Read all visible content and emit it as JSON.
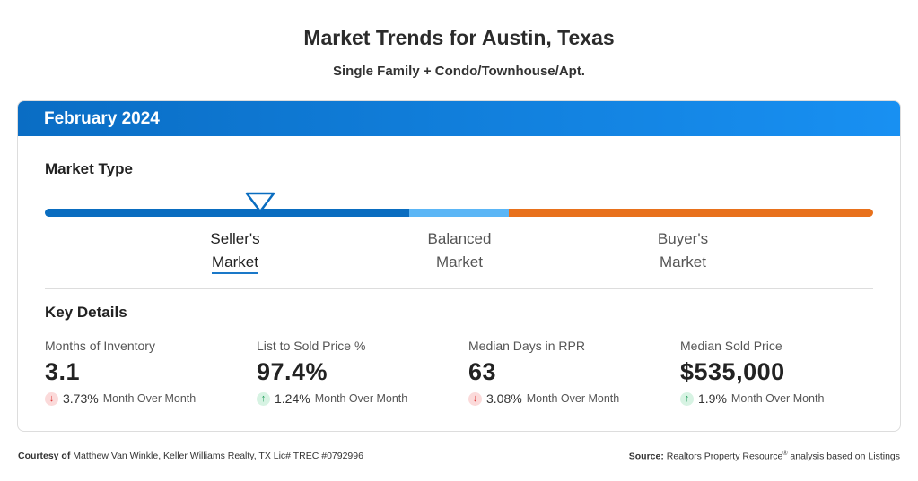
{
  "title": "Market Trends for Austin, Texas",
  "subtitle": "Single Family + Condo/Townhouse/Apt.",
  "period": "February 2024",
  "market_type": {
    "heading": "Market Type",
    "indicator_position": 0.26,
    "colors": {
      "seller": "#0a6dc0",
      "balanced": "#5bb6f6",
      "buyer": "#e8711c"
    },
    "labels": [
      {
        "line1": "Seller's",
        "line2": "Market",
        "active": true
      },
      {
        "line1": "Balanced",
        "line2": "Market"
      },
      {
        "line1": "Buyer's",
        "line2": "Market"
      }
    ]
  },
  "key_details": {
    "heading": "Key Details",
    "items": [
      {
        "label": "Months of Inventory",
        "value": "3.1",
        "direction": "down",
        "change": "3.73%",
        "period": "Month Over Month"
      },
      {
        "label": "List to Sold Price %",
        "value": "97.4%",
        "direction": "up",
        "change": "1.24%",
        "period": "Month Over Month"
      },
      {
        "label": "Median Days in RPR",
        "value": "63",
        "direction": "down",
        "change": "3.08%",
        "period": "Month Over Month"
      },
      {
        "label": "Median Sold Price",
        "value": "$535,000",
        "direction": "up",
        "change": "1.9%",
        "period": "Month Over Month"
      }
    ]
  },
  "footer": {
    "courtesy_label": "Courtesy of",
    "courtesy_text": "Matthew Van Winkle, Keller Williams Realty, TX Lic# TREC #0792996",
    "source_label": "Source:",
    "source_text": "Realtors Property Resource",
    "source_mark": "®",
    "source_suffix": " analysis based on Listings"
  }
}
